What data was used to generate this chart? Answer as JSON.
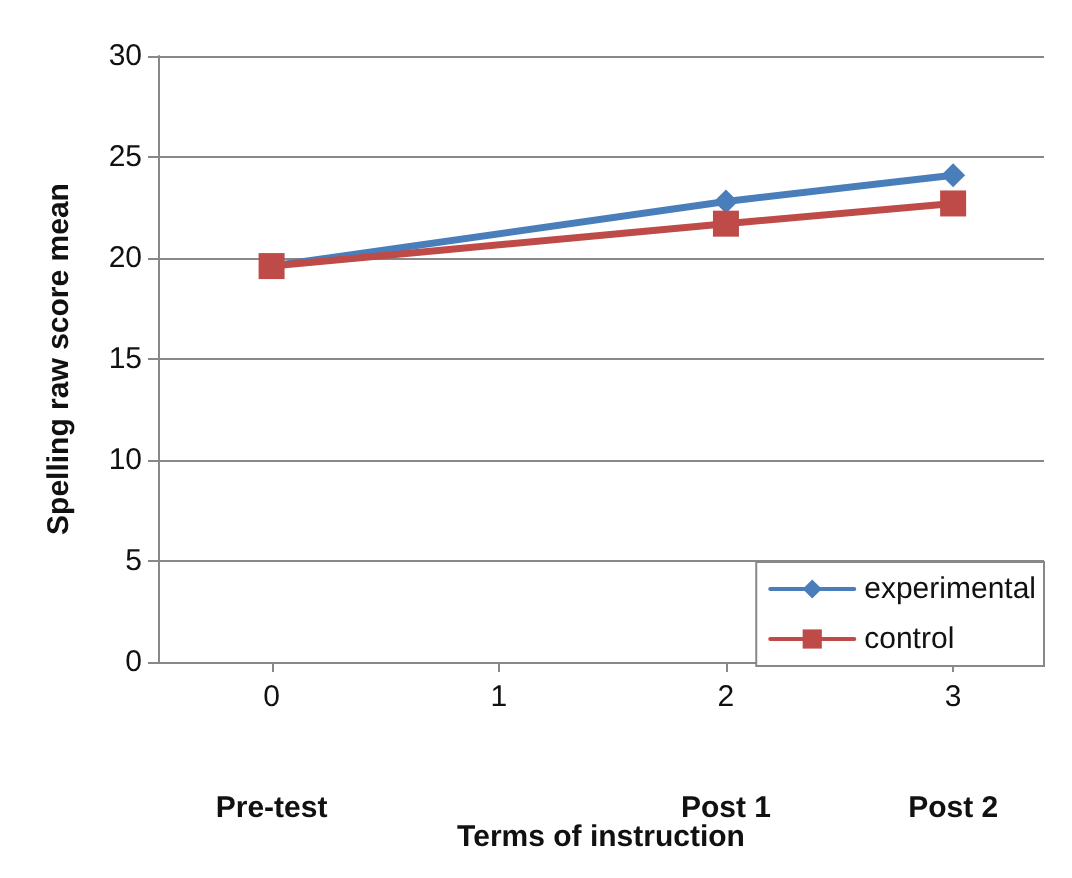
{
  "chart_data": {
    "type": "line",
    "xlabel": "Terms of instruction",
    "ylabel": "Spelling raw score mean",
    "x": [
      0,
      2,
      3
    ],
    "series": [
      {
        "name": "experimental",
        "color": "#4a7ebb",
        "marker": "diamond",
        "values": [
          19.6,
          22.8,
          24.1
        ]
      },
      {
        "name": "control",
        "color": "#be4b48",
        "marker": "square",
        "values": [
          19.6,
          21.7,
          22.7
        ]
      }
    ],
    "xlim": [
      -0.5,
      3.4
    ],
    "xticks": [
      0,
      1,
      2,
      3
    ],
    "ylim": [
      0,
      30
    ],
    "yticks": [
      0,
      5,
      10,
      15,
      20,
      25,
      30
    ],
    "grid": "y",
    "legend": "bottom right",
    "annotations": [
      "Pre-test",
      "Post 1",
      "Post 2"
    ]
  }
}
